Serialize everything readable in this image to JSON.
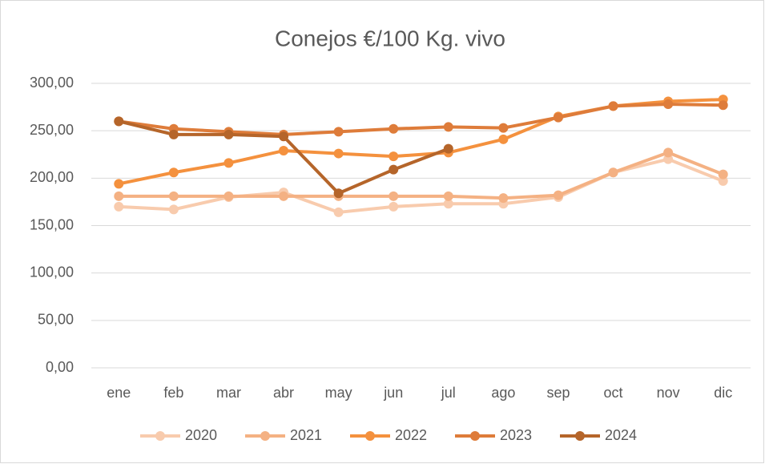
{
  "chart_data": {
    "type": "line",
    "title": "Conejos €/100 Kg. vivo",
    "categories": [
      "ene",
      "feb",
      "mar",
      "abr",
      "may",
      "jun",
      "jul",
      "ago",
      "sep",
      "oct",
      "nov",
      "dic"
    ],
    "series": [
      {
        "name": "2020",
        "color": "#f8cbad",
        "values": [
          170,
          167,
          180,
          185,
          164,
          170,
          173,
          173,
          180,
          206,
          220,
          197
        ]
      },
      {
        "name": "2021",
        "color": "#f4b183",
        "values": [
          181,
          181,
          181,
          181,
          181,
          181,
          181,
          179,
          182,
          206,
          227,
          204
        ]
      },
      {
        "name": "2022",
        "color": "#f4913e",
        "values": [
          194,
          206,
          216,
          229,
          226,
          223,
          227,
          241,
          265,
          276,
          281,
          283
        ]
      },
      {
        "name": "2023",
        "color": "#de7c3a",
        "values": [
          260,
          252,
          249,
          246,
          249,
          252,
          254,
          253,
          264,
          276,
          278,
          277
        ]
      },
      {
        "name": "2024",
        "color": "#b5652a",
        "values": [
          260,
          246,
          246,
          244,
          184,
          209,
          231,
          null,
          null,
          null,
          null,
          null
        ]
      }
    ],
    "ylim": [
      0,
      300
    ],
    "yticks": [
      {
        "value": 0,
        "label": "0,00"
      },
      {
        "value": 50,
        "label": "50,00"
      },
      {
        "value": 100,
        "label": "100,00"
      },
      {
        "value": 150,
        "label": "150,00"
      },
      {
        "value": 200,
        "label": "200,00"
      },
      {
        "value": 250,
        "label": "250,00"
      },
      {
        "value": 300,
        "label": "300,00"
      }
    ],
    "grid": true,
    "legend": "bottom"
  }
}
